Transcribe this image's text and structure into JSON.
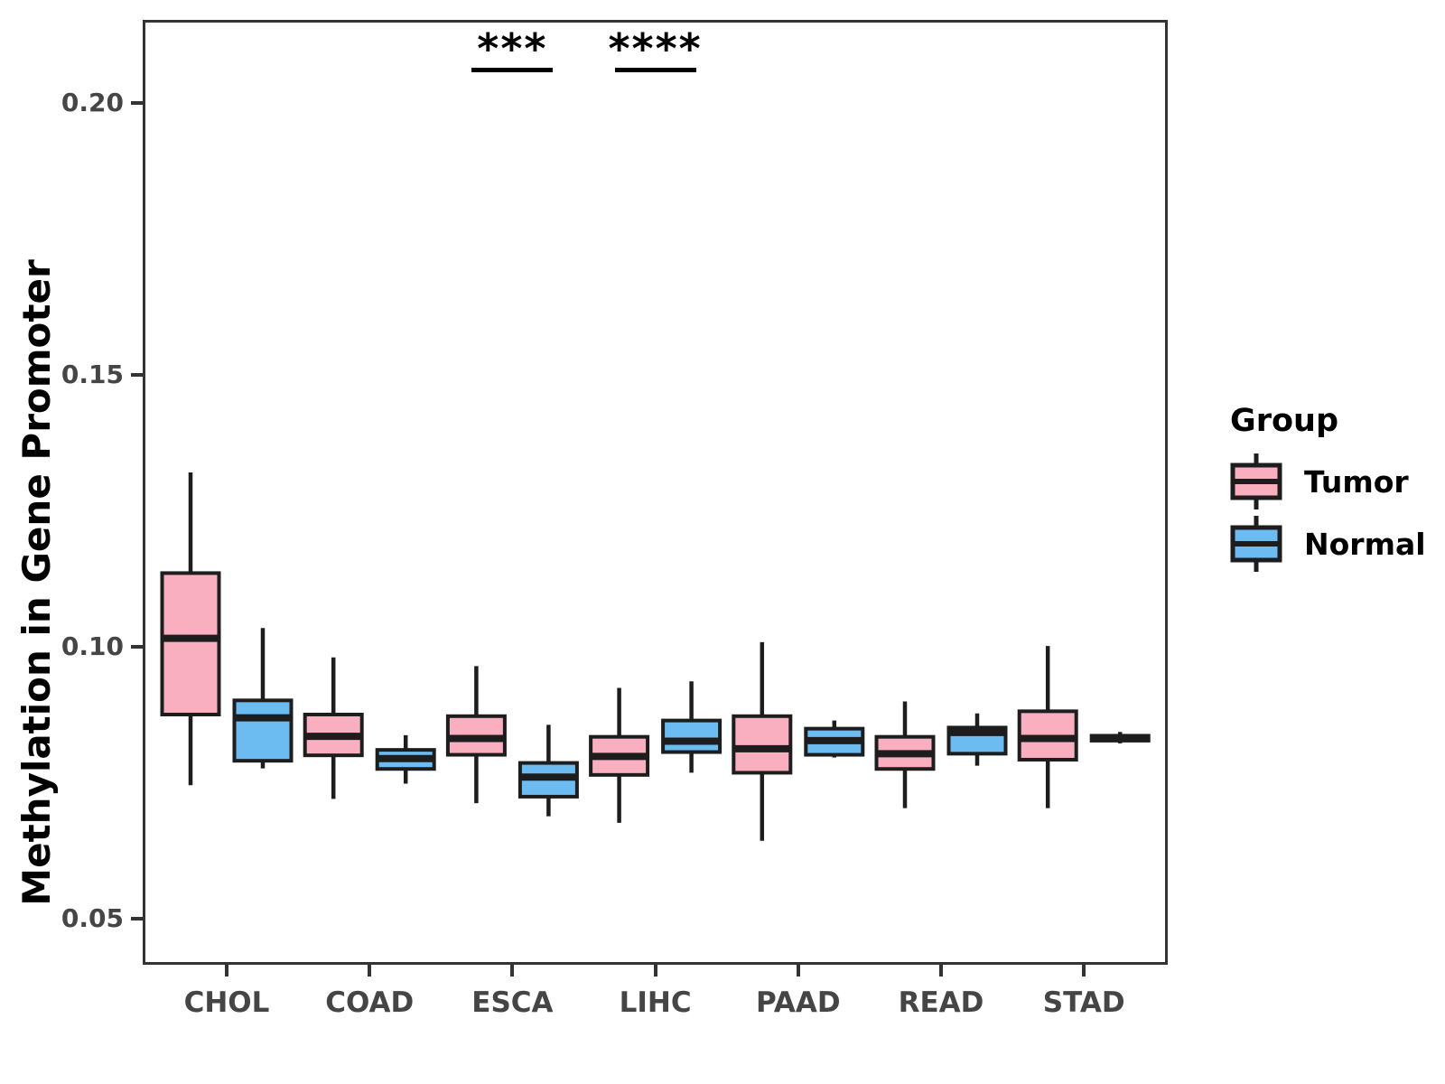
{
  "chart_data": {
    "type": "boxplot",
    "title": "",
    "ylabel": "Methylation in Gene Promoter",
    "xlabel": "",
    "categories": [
      "CHOL",
      "COAD",
      "ESCA",
      "LIHC",
      "PAAD",
      "READ",
      "STAD"
    ],
    "ylim": [
      0.0415,
      0.2152
    ],
    "yticks": [
      {
        "label": "0.05",
        "value": 0.05
      },
      {
        "label": "0.10",
        "value": 0.1
      },
      {
        "label": "0.15",
        "value": 0.15
      },
      {
        "label": "0.20",
        "value": 0.2
      }
    ],
    "grid": false,
    "legend": {
      "title": "Group",
      "position": "right",
      "items": [
        {
          "label": "Tumor",
          "color": "#F9AFC0"
        },
        {
          "label": "Normal",
          "color": "#6CBCF2"
        }
      ]
    },
    "box_stroke_color": "#1d1d1d",
    "series": [
      {
        "name": "Tumor",
        "boxes": [
          {
            "category": "CHOL",
            "whislo": 0.0745,
            "q1": 0.0875,
            "med": 0.1015,
            "q3": 0.1135,
            "whishi": 0.132
          },
          {
            "category": "COAD",
            "whislo": 0.072,
            "q1": 0.08,
            "med": 0.0835,
            "q3": 0.0875,
            "whishi": 0.098
          },
          {
            "category": "ESCA",
            "whislo": 0.0712,
            "q1": 0.0801,
            "med": 0.0831,
            "q3": 0.0872,
            "whishi": 0.0964
          },
          {
            "category": "LIHC",
            "whislo": 0.0676,
            "q1": 0.0764,
            "med": 0.0798,
            "q3": 0.0834,
            "whishi": 0.0924
          },
          {
            "category": "PAAD",
            "whislo": 0.0643,
            "q1": 0.0768,
            "med": 0.0812,
            "q3": 0.0872,
            "whishi": 0.1008
          },
          {
            "category": "READ",
            "whislo": 0.0703,
            "q1": 0.0775,
            "med": 0.0803,
            "q3": 0.0834,
            "whishi": 0.0899
          },
          {
            "category": "STAD",
            "whislo": 0.0703,
            "q1": 0.0792,
            "med": 0.0831,
            "q3": 0.0881,
            "whishi": 0.1001
          }
        ]
      },
      {
        "name": "Normal",
        "boxes": [
          {
            "category": "CHOL",
            "whislo": 0.0776,
            "q1": 0.079,
            "med": 0.0869,
            "q3": 0.0901,
            "whishi": 0.1034
          },
          {
            "category": "COAD",
            "whislo": 0.0748,
            "q1": 0.0775,
            "med": 0.0794,
            "q3": 0.081,
            "whishi": 0.0837
          },
          {
            "category": "ESCA",
            "whislo": 0.0688,
            "q1": 0.0724,
            "med": 0.076,
            "q3": 0.0786,
            "whishi": 0.0856
          },
          {
            "category": "LIHC",
            "whislo": 0.0768,
            "q1": 0.0806,
            "med": 0.0826,
            "q3": 0.0864,
            "whishi": 0.0936
          },
          {
            "category": "PAAD",
            "whislo": 0.0796,
            "q1": 0.0801,
            "med": 0.0827,
            "q3": 0.0849,
            "whishi": 0.0864
          },
          {
            "category": "READ",
            "whislo": 0.0781,
            "q1": 0.0803,
            "med": 0.0842,
            "q3": 0.0851,
            "whishi": 0.0877
          },
          {
            "category": "STAD",
            "whislo": 0.0822,
            "q1": 0.0827,
            "med": 0.0831,
            "q3": 0.0836,
            "whishi": 0.0843
          }
        ]
      }
    ],
    "annotations": [
      {
        "label": "***",
        "category": "ESCA",
        "line_y": 0.2064
      },
      {
        "label": "****",
        "category": "LIHC",
        "line_y": 0.2064
      }
    ]
  }
}
